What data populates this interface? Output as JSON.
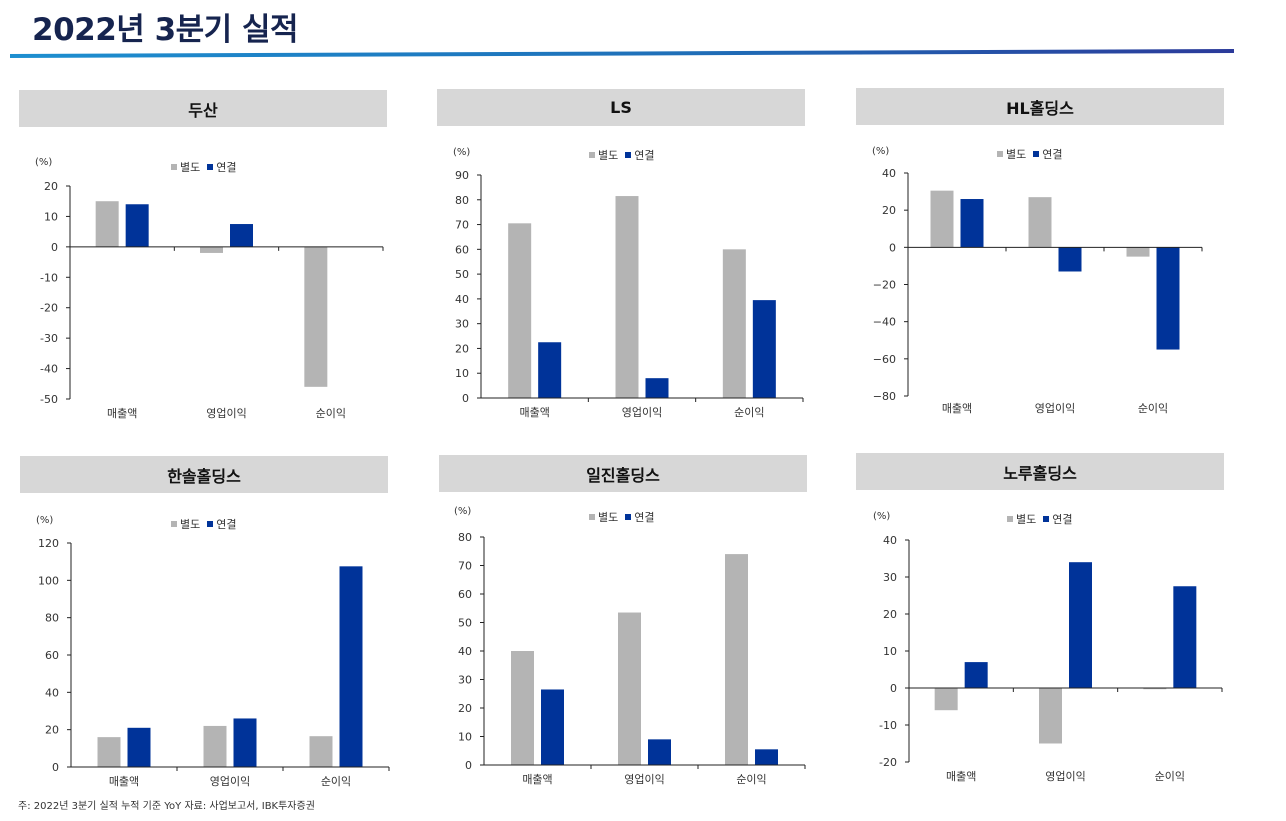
{
  "page": {
    "title": "2022년 3분기 실적",
    "footnote": "주: 2022년 3분기 실적 누적 기준 YoY 자료: 사업보고서, IBK투자증권"
  },
  "colors": {
    "separate": "#b4b4b4",
    "consolidated": "#003399",
    "header_bg": "#d7d7d7",
    "title": "#16244f"
  },
  "chart_data": [
    {
      "type": "bar",
      "title": "두산",
      "unit": "(%)",
      "categories": [
        "매출액",
        "영업이익",
        "순이익"
      ],
      "series": [
        {
          "name": "별도",
          "values": [
            15,
            -2,
            -46
          ]
        },
        {
          "name": "연결",
          "values": [
            14,
            7.5,
            0
          ]
        }
      ],
      "ylim": [
        -50,
        20
      ],
      "yticks": [
        20,
        10,
        0,
        -10,
        -20,
        -30,
        -40,
        -50
      ],
      "ytick_labels": [
        "20",
        "10",
        "0",
        "-10",
        "-20",
        "-30",
        "-40",
        "-50"
      ]
    },
    {
      "type": "bar",
      "title": "LS",
      "unit": "(%)",
      "categories": [
        "매출액",
        "영업이익",
        "순이익"
      ],
      "series": [
        {
          "name": "별도",
          "values": [
            70.5,
            81.5,
            60
          ]
        },
        {
          "name": "연결",
          "values": [
            22.5,
            8,
            39.5
          ]
        }
      ],
      "ylim": [
        0,
        90
      ],
      "yticks": [
        90,
        80,
        70,
        60,
        50,
        40,
        30,
        20,
        10,
        0
      ],
      "ytick_labels": [
        "90",
        "80",
        "70",
        "60",
        "50",
        "40",
        "30",
        "20",
        "10",
        "0"
      ]
    },
    {
      "type": "bar",
      "title": "HL홀딩스",
      "unit": "(%)",
      "categories": [
        "매출액",
        "영업이익",
        "순이익"
      ],
      "series": [
        {
          "name": "별도",
          "values": [
            30.5,
            27,
            -5
          ]
        },
        {
          "name": "연결",
          "values": [
            26,
            -13,
            -55
          ]
        }
      ],
      "ylim": [
        -80,
        40
      ],
      "yticks": [
        40,
        20,
        0,
        -20,
        -40,
        -60,
        -80
      ],
      "ytick_labels": [
        "40",
        "20",
        "0",
        "−20",
        "−40",
        "−60",
        "−80"
      ]
    },
    {
      "type": "bar",
      "title": "한솔홀딩스",
      "unit": "(%)",
      "categories": [
        "매출액",
        "영업이익",
        "순이익"
      ],
      "series": [
        {
          "name": "별도",
          "values": [
            16,
            22,
            16.5
          ]
        },
        {
          "name": "연결",
          "values": [
            21,
            26,
            107.5
          ]
        }
      ],
      "ylim": [
        0,
        120
      ],
      "yticks": [
        120,
        100,
        80,
        60,
        40,
        20,
        0
      ],
      "ytick_labels": [
        "120",
        "100",
        "80",
        "60",
        "40",
        "20",
        "0"
      ]
    },
    {
      "type": "bar",
      "title": "일진홀딩스",
      "unit": "(%)",
      "categories": [
        "매출액",
        "영업이익",
        "순이익"
      ],
      "series": [
        {
          "name": "별도",
          "values": [
            40,
            53.5,
            74
          ]
        },
        {
          "name": "연결",
          "values": [
            26.5,
            9,
            5.5
          ]
        }
      ],
      "ylim": [
        0,
        80
      ],
      "yticks": [
        80,
        70,
        60,
        50,
        40,
        30,
        20,
        10,
        0
      ],
      "ytick_labels": [
        "80",
        "70",
        "60",
        "50",
        "40",
        "30",
        "20",
        "10",
        "0"
      ]
    },
    {
      "type": "bar",
      "title": "노루홀딩스",
      "unit": "(%)",
      "categories": [
        "매출액",
        "영업이익",
        "순이익"
      ],
      "series": [
        {
          "name": "별도",
          "values": [
            -6,
            -15,
            -0.3
          ]
        },
        {
          "name": "연결",
          "values": [
            7,
            34,
            27.5
          ]
        }
      ],
      "ylim": [
        -20,
        40
      ],
      "yticks": [
        40,
        30,
        20,
        10,
        0,
        -10,
        -20
      ],
      "ytick_labels": [
        "40",
        "30",
        "20",
        "10",
        "0",
        "-10",
        "-20"
      ]
    }
  ]
}
